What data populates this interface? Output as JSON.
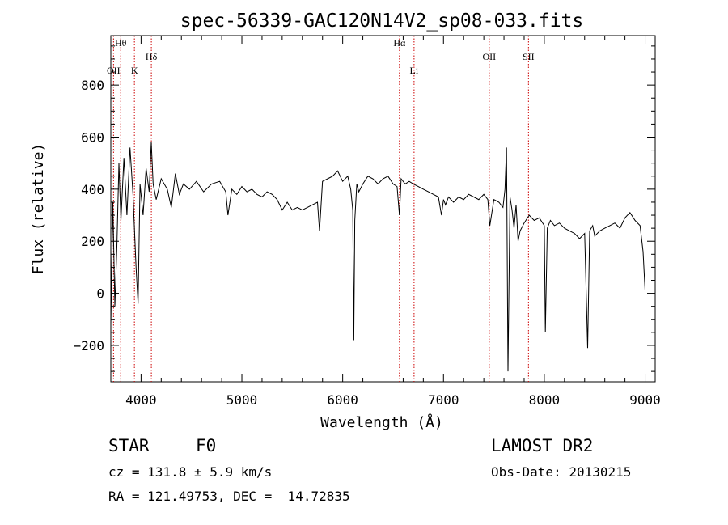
{
  "chart_data": {
    "type": "line",
    "title": "spec-56339-GAC120N14V2_sp08-033.fits",
    "xlabel": "Wavelength (Å)",
    "ylabel": "Flux (relative)",
    "xlim": [
      3700,
      9100
    ],
    "ylim": [
      -340,
      990
    ],
    "xticks": [
      4000,
      5000,
      6000,
      7000,
      8000,
      9000
    ],
    "yticks": [
      -200,
      0,
      200,
      400,
      600,
      800
    ],
    "line_color": "#000000",
    "marker_color": "#cc0000",
    "lines": [
      {
        "label": "OII",
        "wavelength": 3727
      },
      {
        "label": "Hθ",
        "wavelength": 3798
      },
      {
        "label": "K",
        "wavelength": 3934
      },
      {
        "label": "Hδ",
        "wavelength": 4102
      },
      {
        "label": "Hα",
        "wavelength": 6563
      },
      {
        "label": "Li",
        "wavelength": 6708
      },
      {
        "label": "OII",
        "wavelength": 7454
      },
      {
        "label": "SII",
        "wavelength": 7843
      }
    ],
    "series": [
      {
        "x": [
          3700,
          3720,
          3740,
          3760,
          3780,
          3800,
          3830,
          3860,
          3890,
          3920,
          3950,
          3970,
          3990,
          4020,
          4050,
          4080,
          4101,
          4120,
          4150,
          4200,
          4260,
          4300,
          4340,
          4380,
          4420,
          4480,
          4550,
          4620,
          4700,
          4780,
          4840,
          4862,
          4900,
          4950,
          5000,
          5050,
          5100,
          5150,
          5200,
          5250,
          5300,
          5350,
          5400,
          5450,
          5500,
          5550,
          5600,
          5650,
          5700,
          5750,
          5770,
          5800,
          5850,
          5900,
          5950,
          6000,
          6050,
          6080,
          6100,
          6110,
          6120,
          6140,
          6160,
          6200,
          6250,
          6300,
          6350,
          6400,
          6450,
          6500,
          6540,
          6563,
          6580,
          6620,
          6660,
          6700,
          6750,
          6800,
          6850,
          6900,
          6950,
          6980,
          7000,
          7020,
          7050,
          7100,
          7150,
          7200,
          7250,
          7300,
          7350,
          7400,
          7440,
          7460,
          7500,
          7550,
          7590,
          7610,
          7625,
          7640,
          7660,
          7680,
          7700,
          7720,
          7740,
          7760,
          7800,
          7850,
          7900,
          7950,
          8000,
          8010,
          8030,
          8060,
          8100,
          8150,
          8200,
          8250,
          8300,
          8350,
          8400,
          8430,
          8450,
          8480,
          8500,
          8550,
          8600,
          8650,
          8700,
          8750,
          8800,
          8850,
          8900,
          8950,
          8980,
          9000
        ],
        "y": [
          -120,
          350,
          -50,
          180,
          500,
          280,
          520,
          300,
          560,
          380,
          100,
          -40,
          420,
          300,
          480,
          390,
          580,
          420,
          360,
          440,
          400,
          330,
          460,
          380,
          420,
          400,
          430,
          390,
          420,
          430,
          390,
          300,
          400,
          380,
          410,
          390,
          400,
          380,
          370,
          390,
          380,
          360,
          320,
          350,
          320,
          330,
          320,
          330,
          340,
          350,
          240,
          430,
          440,
          450,
          470,
          430,
          450,
          400,
          320,
          -180,
          280,
          420,
          390,
          420,
          450,
          440,
          420,
          440,
          450,
          420,
          410,
          300,
          440,
          420,
          430,
          420,
          410,
          400,
          390,
          380,
          370,
          300,
          360,
          340,
          370,
          350,
          370,
          360,
          380,
          370,
          360,
          380,
          360,
          260,
          360,
          350,
          330,
          400,
          560,
          -300,
          370,
          320,
          250,
          340,
          200,
          240,
          270,
          300,
          280,
          290,
          260,
          -150,
          250,
          280,
          260,
          270,
          250,
          240,
          230,
          210,
          230,
          -210,
          240,
          260,
          220,
          240,
          250,
          260,
          270,
          250,
          290,
          310,
          280,
          260,
          160,
          10
        ]
      }
    ]
  },
  "info": {
    "object_class": "STAR",
    "subclass": "F0",
    "cz": "cz = 131.8 ± 5.9 km/s",
    "coords": "RA = 121.49753, DEC =  14.72835",
    "survey": "LAMOST DR2",
    "obs_date": "Obs-Date: 20130215"
  }
}
